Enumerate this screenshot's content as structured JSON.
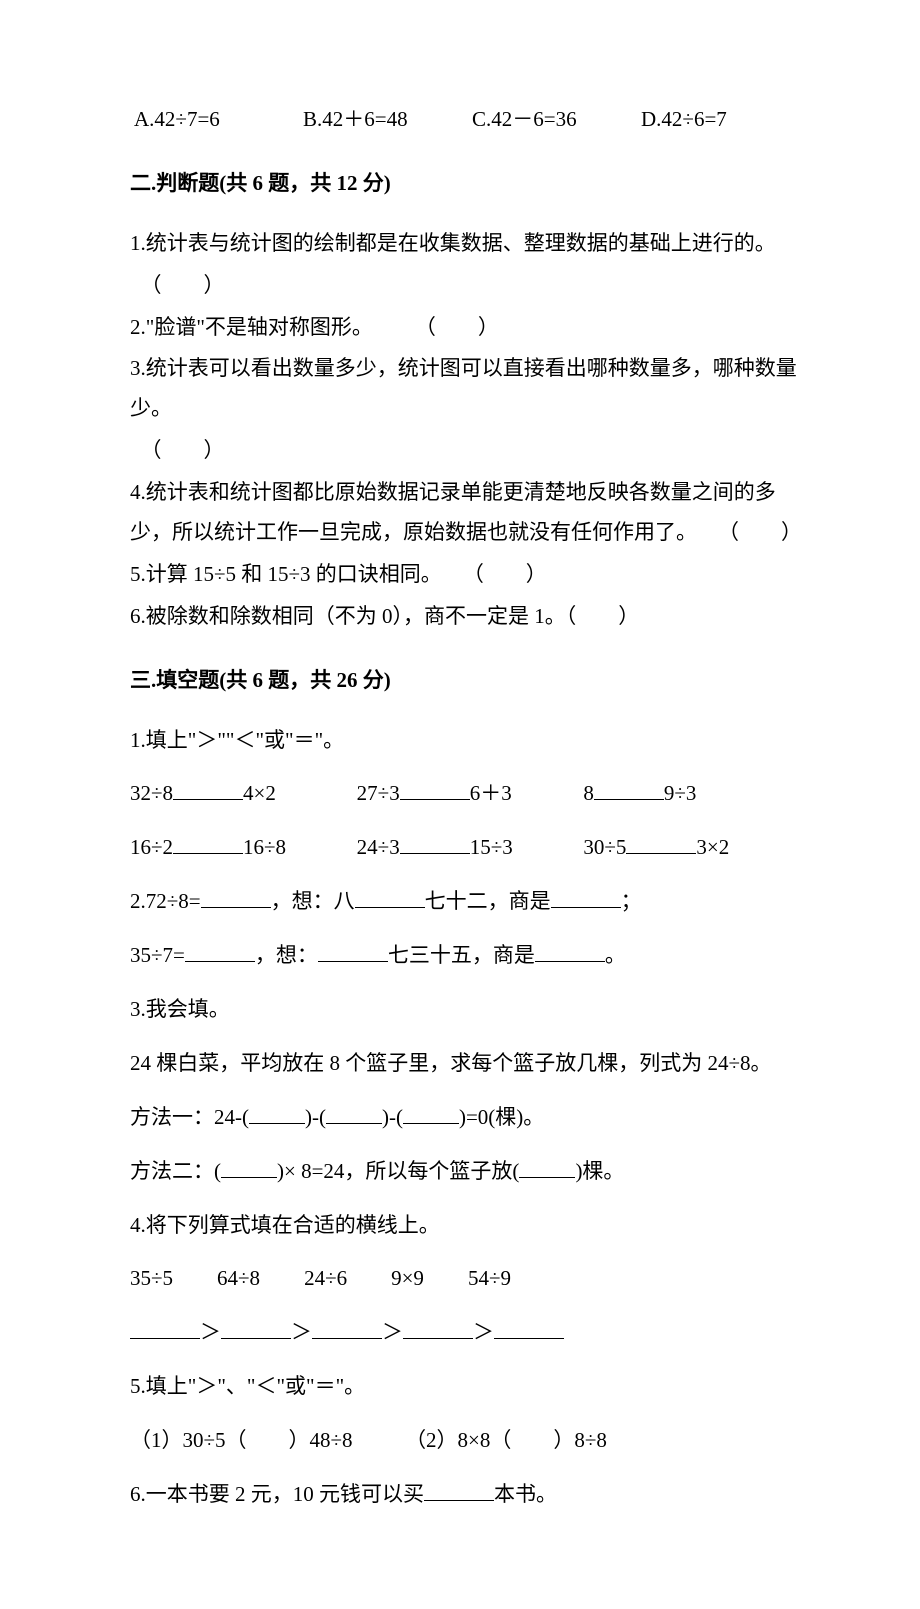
{
  "optionsRow": {
    "a": "A.42÷7=6",
    "b": "B.42＋6=48",
    "c": "C.42－6=36",
    "d": "D.42÷6=7"
  },
  "section2": {
    "title": "二.判断题(共 6 题，共 12 分)",
    "items": [
      "1.统计表与统计图的绘制都是在收集数据、整理数据的基础上进行的。",
      "2.\"脸谱\"不是轴对称图形。",
      "3.统计表可以看出数量多少，统计图可以直接看出哪种数量多，哪种数量少。",
      "4.统计表和统计图都比原始数据记录单能更清楚地反映各数量之间的多少，所以统计工作一旦完成，原始数据也就没有任何作用了。",
      "5.计算 15÷5 和 15÷3 的口诀相同。",
      "6.被除数和除数相同（不为 0），商不一定是 1。"
    ],
    "paren": "（　　）"
  },
  "section3": {
    "title": "三.填空题(共 6 题，共 26 分)",
    "q1_title": "1.填上\"＞\"\"＜\"或\"＝\"。",
    "q1_row1": [
      "32÷8",
      "4×2",
      "27÷3",
      "6＋3",
      "8",
      "9÷3"
    ],
    "q1_row2": [
      "16÷2",
      "16÷8",
      "24÷3",
      "15÷3",
      "30÷5",
      "3×2"
    ],
    "q2_a": "2.72÷8=",
    "q2_b": "，想：八",
    "q2_c": "七十二，商是",
    "q2_d": "；",
    "q2_e": "35÷7=",
    "q2_f": "，想：",
    "q2_g": "七三十五，商是",
    "q2_h": "。",
    "q3_title": "3.我会填。",
    "q3_line1": "24 棵白菜，平均放在 8 个篮子里，求每个篮子放几棵，列式为 24÷8。",
    "q3_m1_a": "方法一：24-(",
    "q3_m1_b": ")-(",
    "q3_m1_c": ")-(",
    "q3_m1_d": ")=0(棵)。",
    "q3_m2_a": "方法二：(",
    "q3_m2_b": ")× 8=24，所以每个篮子放(",
    "q3_m2_c": ")棵。",
    "q4_title": "4.将下列算式填在合适的横线上。",
    "q4_items": [
      "35÷5",
      "64÷8",
      "24÷6",
      "9×9",
      "54÷9"
    ],
    "q4_gt": "＞",
    "q5_title": "5.填上\"＞\"、\"＜\"或\"＝\"。",
    "q5_1a": "（1）30÷5（",
    "q5_1b": "）48÷8",
    "q5_2a": "（2）8×8（",
    "q5_2b": "）8÷8",
    "q6_a": "6.一本书要 2 元，10 元钱可以买",
    "q6_b": "本书。"
  }
}
